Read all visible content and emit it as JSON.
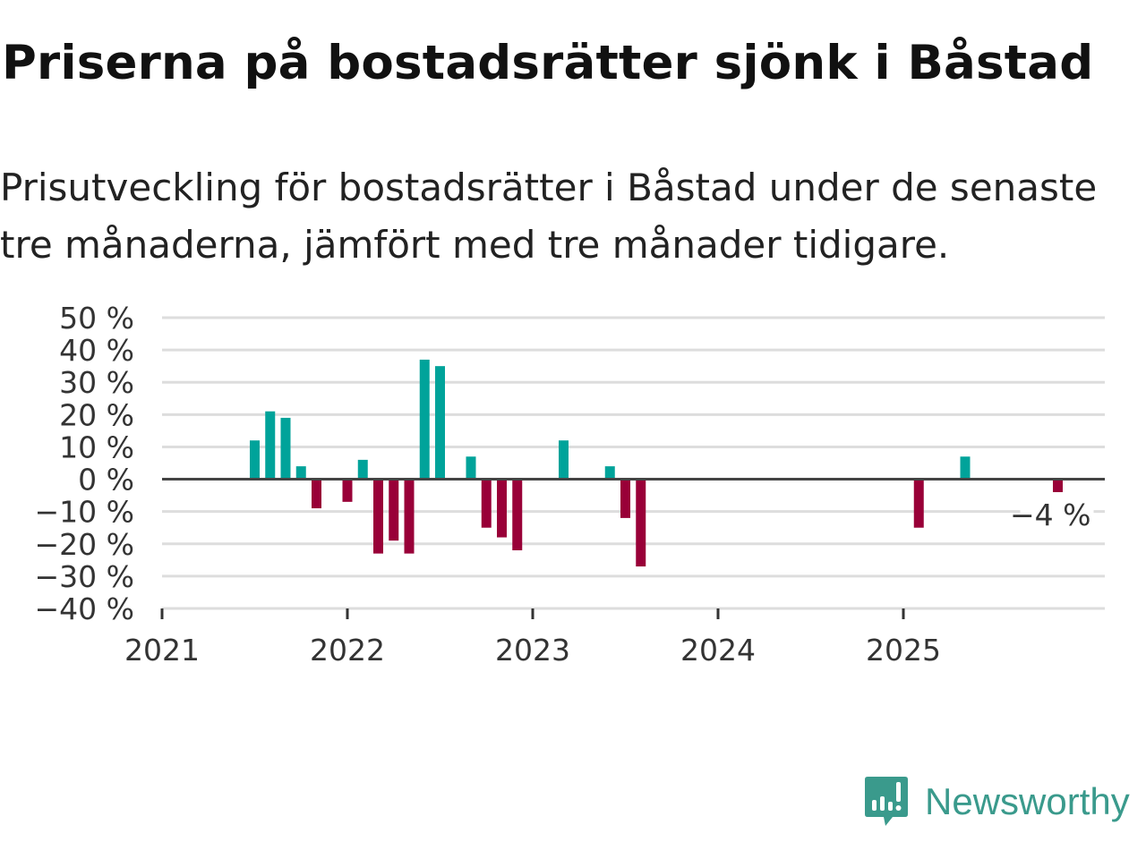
{
  "title": "Priserna på bostadsrätter sjönk i Båstad",
  "subtitle": "Prisutveckling för bostadsrätter i Båstad under de senaste tre månaderna, jämfört med tre månader tidigare.",
  "brand": "Newsworthy",
  "colors": {
    "positive": "#00a39a",
    "negative": "#990038",
    "brand": "#3a9a8c"
  },
  "chart_data": {
    "type": "bar",
    "title": "Priserna på bostadsrätter sjönk i Båstad",
    "xlabel": "",
    "ylabel": "",
    "ylim": [
      -40,
      50
    ],
    "yticks": [
      50,
      40,
      30,
      20,
      10,
      0,
      -10,
      -20,
      -30,
      -40
    ],
    "ytick_labels": [
      "50 %",
      "40 %",
      "30 %",
      "20 %",
      "10 %",
      "0 %",
      "−10 %",
      "−20 %",
      "−30 %",
      "−40 %"
    ],
    "xticks": [
      "2021",
      "2022",
      "2023",
      "2024",
      "2025"
    ],
    "x_start": "2021-01",
    "grid": true,
    "annotation": {
      "date": "2025-11",
      "text": "−4 %"
    },
    "series": [
      {
        "name": "Prisutveckling",
        "data": [
          [
            "2021-07",
            12
          ],
          [
            "2021-08",
            21
          ],
          [
            "2021-09",
            19
          ],
          [
            "2021-10",
            4
          ],
          [
            "2021-11",
            -9
          ],
          [
            "2022-01",
            -7
          ],
          [
            "2022-02",
            6
          ],
          [
            "2022-03",
            -23
          ],
          [
            "2022-04",
            -19
          ],
          [
            "2022-05",
            -23
          ],
          [
            "2022-06",
            37
          ],
          [
            "2022-07",
            35
          ],
          [
            "2022-09",
            7
          ],
          [
            "2022-10",
            -15
          ],
          [
            "2022-11",
            -18
          ],
          [
            "2022-12",
            -22
          ],
          [
            "2023-03",
            12
          ],
          [
            "2023-06",
            4
          ],
          [
            "2023-07",
            -12
          ],
          [
            "2023-08",
            -27
          ],
          [
            "2025-02",
            -15
          ],
          [
            "2025-05",
            7
          ],
          [
            "2025-11",
            -4
          ]
        ]
      }
    ]
  }
}
